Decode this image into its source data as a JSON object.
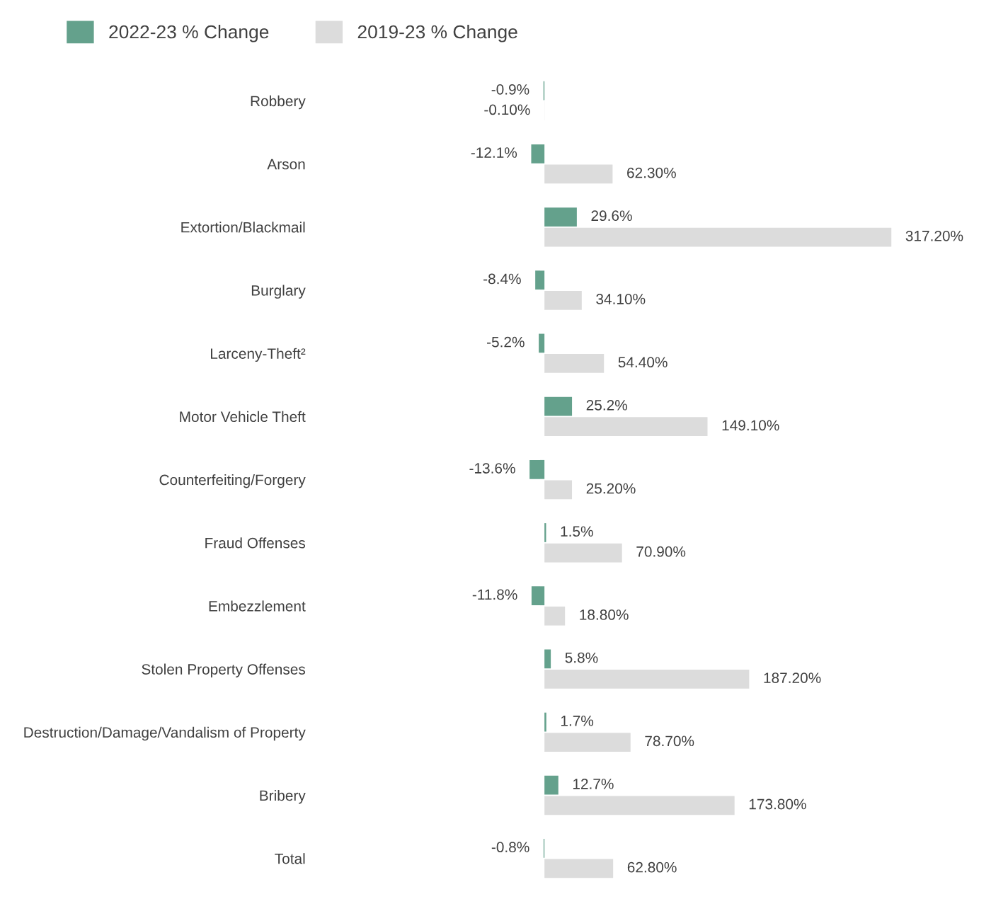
{
  "chart_data": {
    "type": "bar",
    "orientation": "horizontal",
    "categories": [
      "Robbery",
      "Arson",
      "Extortion/Blackmail",
      "Burglary",
      "Larceny-Theft²",
      "Motor Vehicle Theft",
      "Counterfeiting/Forgery",
      "Fraud Offenses",
      "Embezzlement",
      "Stolen Property Offenses",
      "Destruction/Damage/Vandalism of Property",
      "Bribery",
      "Total"
    ],
    "series": [
      {
        "name": "2022-23 % Change",
        "color": "#64a18c",
        "values": [
          -0.9,
          -12.1,
          29.6,
          -8.4,
          -5.2,
          25.2,
          -13.6,
          1.5,
          -11.8,
          5.8,
          1.7,
          12.7,
          -0.8
        ],
        "value_labels": [
          "-0.9%",
          "-12.1%",
          "29.6%",
          "-8.4%",
          "-5.2%",
          "25.2%",
          "-13.6%",
          "1.5%",
          "-11.8%",
          "5.8%",
          "1.7%",
          "12.7%",
          "-0.8%"
        ]
      },
      {
        "name": "2019-23 % Change",
        "color": "#dcdcdc",
        "values": [
          -0.1,
          62.3,
          317.2,
          34.1,
          54.4,
          149.1,
          25.2,
          70.9,
          18.8,
          187.2,
          78.7,
          173.8,
          62.8
        ],
        "value_labels": [
          "-0.10%",
          "62.30%",
          "317.20%",
          "34.10%",
          "54.40%",
          "149.10%",
          "25.20%",
          "70.90%",
          "18.80%",
          "187.20%",
          "78.70%",
          "173.80%",
          "62.80%"
        ]
      }
    ],
    "legend": "top left",
    "grid": false
  }
}
